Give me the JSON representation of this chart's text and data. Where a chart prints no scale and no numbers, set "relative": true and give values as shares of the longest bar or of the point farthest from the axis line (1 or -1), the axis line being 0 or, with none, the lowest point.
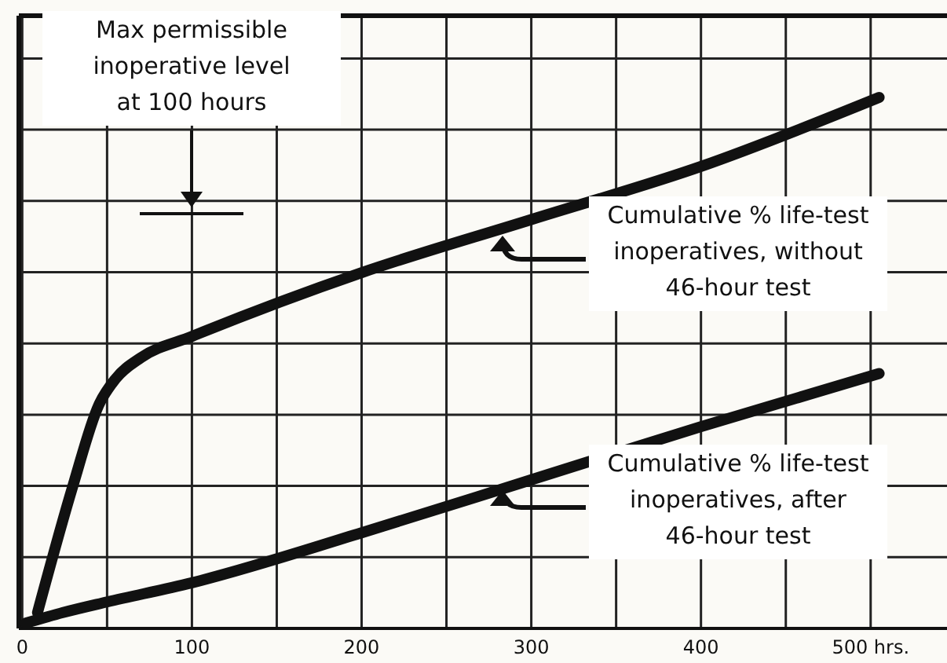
{
  "chart_data": {
    "type": "line",
    "relative": true,
    "series": [
      {
        "color": "#111111",
        "x": [
          9,
          30,
          45,
          55,
          70,
          100,
          200,
          300,
          400,
          505
        ],
        "values": [
          0.03,
          0.27,
          0.42,
          0.47,
          0.51,
          0.55,
          0.67,
          0.77,
          0.87,
          1
        ]
      },
      {
        "color": "#111111",
        "x": [
          2,
          24,
          50,
          100,
          200,
          300,
          400,
          505
        ],
        "values": [
          0.01,
          0.03,
          0.05,
          0.086,
          0.18,
          0.28,
          0.38,
          0.48
        ]
      }
    ],
    "xlim": [
      -2,
      545
    ],
    "xticks": [
      {
        "value": 0,
        "label": "0"
      },
      {
        "value": 50,
        "label": null
      },
      100,
      {
        "value": 150,
        "label": null
      },
      200,
      {
        "value": 250,
        "label": null
      },
      300,
      {
        "value": 350,
        "label": null
      },
      400,
      {
        "value": 450,
        "label": null
      },
      {
        "value": 500,
        "label": "500 hrs."
      }
    ],
    "grid": true,
    "marker": "none",
    "line_style": "solid",
    "annotations": [
      "Max permissible inoperative level at 100 hours",
      "Cumulative % life-test inoperatives, without 46-hour test",
      "Cumulative % life-test inoperatives, after 46-hour test"
    ]
  }
}
